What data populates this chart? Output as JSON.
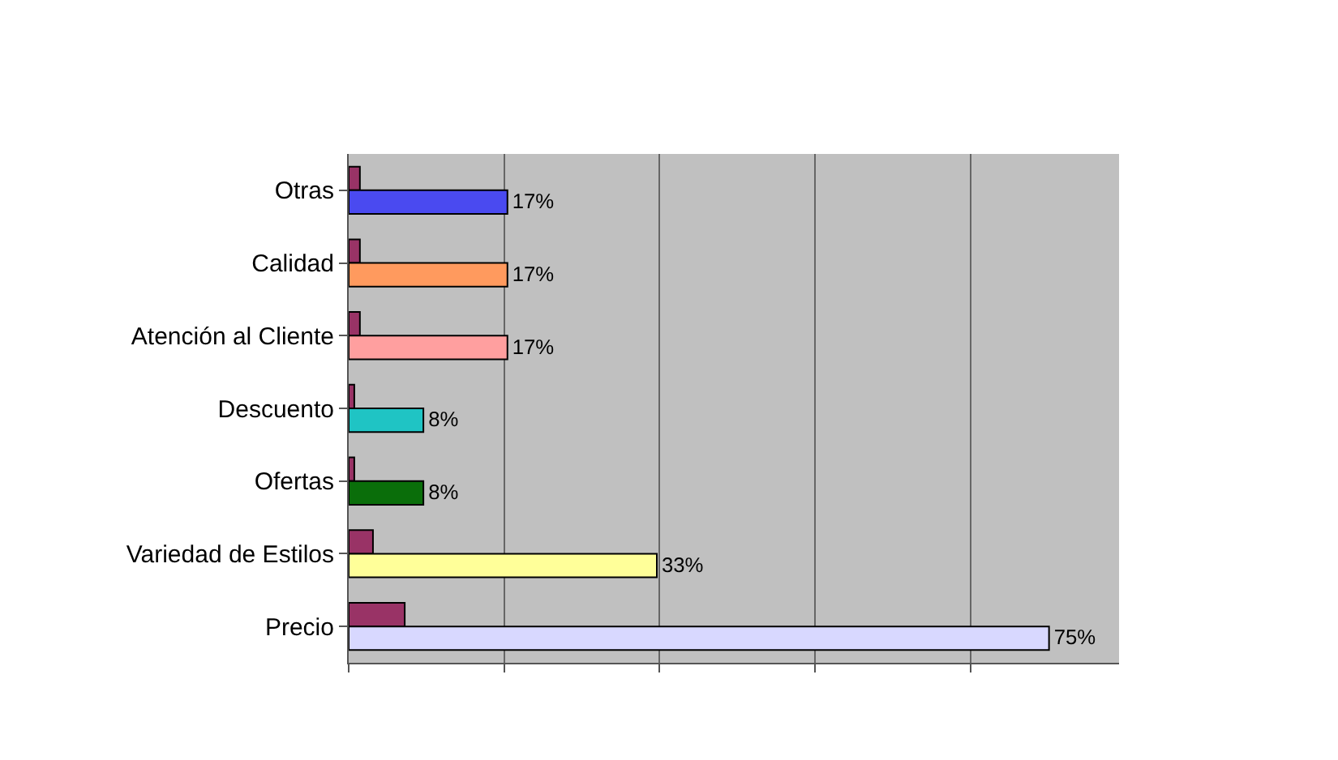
{
  "chart_data": {
    "type": "bar",
    "orientation": "horizontal",
    "grid": "x",
    "tick_labels": "y",
    "categories": [
      "Otras",
      "Calidad",
      "Atención al Cliente",
      "Descuento",
      "Ofertas",
      "Variedad de Estilos",
      "Precio"
    ],
    "series": [
      {
        "color": "#993366",
        "values": [
          1.2,
          1.2,
          1.2,
          0.6,
          0.6,
          2.6,
          6
        ]
      },
      {
        "colors": [
          "#4a4af0",
          "#ff9a5e",
          "#ff9f9f",
          "#1fc4c4",
          "#0a6e0a",
          "#ffff99",
          "#d8d8ff"
        ],
        "values": [
          17,
          17,
          17,
          8,
          8,
          33,
          75
        ],
        "value_labels": [
          "17%",
          "17%",
          "17%",
          "8%",
          "8%",
          "33%",
          "75%"
        ]
      }
    ]
  }
}
